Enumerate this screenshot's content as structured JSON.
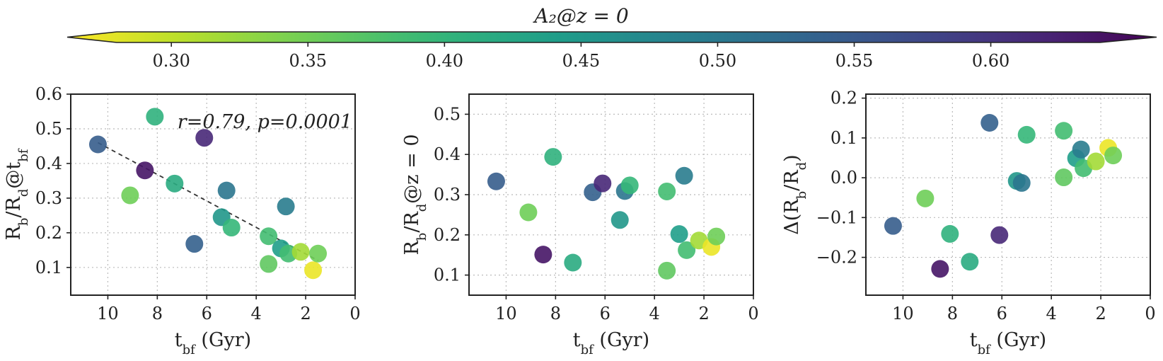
{
  "colorbar": {
    "title": "A₂@z = 0",
    "range": [
      0.28,
      0.64
    ],
    "ticks": [
      0.3,
      0.35,
      0.4,
      0.45,
      0.5,
      0.55,
      0.6
    ],
    "tick_labels": [
      "0.30",
      "0.35",
      "0.40",
      "0.45",
      "0.50",
      "0.55",
      "0.60"
    ],
    "colormap": "viridis_r",
    "extend": "both"
  },
  "chart_data": [
    {
      "type": "scatter",
      "id": "left",
      "xlabel": "t_bf (Gyr)",
      "ylabel": "R_b/R_d@t_bf",
      "xlim": [
        11.5,
        0
      ],
      "ylim": [
        0.02,
        0.6
      ],
      "xticks": [
        10,
        8,
        6,
        4,
        2,
        0
      ],
      "yticks": [
        0.1,
        0.2,
        0.3,
        0.4,
        0.5,
        0.6
      ],
      "xtick_labels": [
        "10",
        "8",
        "6",
        "4",
        "2",
        "0"
      ],
      "ytick_labels": [
        "0.1",
        "0.2",
        "0.3",
        "0.4",
        "0.5",
        "0.6"
      ],
      "annotation": "r=0.79, p=0.0001",
      "fit_line": {
        "x": [
          10.4,
          1.5
        ],
        "y": [
          0.46,
          0.12
        ]
      },
      "points": [
        {
          "x": 10.4,
          "y": 0.455,
          "c": 0.535
        },
        {
          "x": 9.1,
          "y": 0.308,
          "c": 0.36
        },
        {
          "x": 8.5,
          "y": 0.38,
          "c": 0.62
        },
        {
          "x": 8.1,
          "y": 0.535,
          "c": 0.41
        },
        {
          "x": 7.3,
          "y": 0.342,
          "c": 0.42
        },
        {
          "x": 6.5,
          "y": 0.168,
          "c": 0.53
        },
        {
          "x": 6.1,
          "y": 0.474,
          "c": 0.6
        },
        {
          "x": 5.4,
          "y": 0.245,
          "c": 0.45
        },
        {
          "x": 5.2,
          "y": 0.322,
          "c": 0.5
        },
        {
          "x": 5.0,
          "y": 0.215,
          "c": 0.4
        },
        {
          "x": 3.5,
          "y": 0.19,
          "c": 0.39
        },
        {
          "x": 3.5,
          "y": 0.11,
          "c": 0.37
        },
        {
          "x": 3.0,
          "y": 0.155,
          "c": 0.44
        },
        {
          "x": 2.8,
          "y": 0.276,
          "c": 0.49
        },
        {
          "x": 2.7,
          "y": 0.14,
          "c": 0.39
        },
        {
          "x": 2.2,
          "y": 0.145,
          "c": 0.33
        },
        {
          "x": 1.7,
          "y": 0.092,
          "c": 0.29
        },
        {
          "x": 1.5,
          "y": 0.14,
          "c": 0.36
        }
      ]
    },
    {
      "type": "scatter",
      "id": "middle",
      "xlabel": "t_bf (Gyr)",
      "ylabel": "R_b/R_d@z = 0",
      "xlim": [
        11.5,
        0
      ],
      "ylim": [
        0.05,
        0.55
      ],
      "xticks": [
        10,
        8,
        6,
        4,
        2,
        0
      ],
      "yticks": [
        0.1,
        0.2,
        0.3,
        0.4,
        0.5
      ],
      "xtick_labels": [
        "10",
        "8",
        "6",
        "4",
        "2",
        "0"
      ],
      "ytick_labels": [
        "0.1",
        "0.2",
        "0.3",
        "0.4",
        "0.5"
      ],
      "points": [
        {
          "x": 10.4,
          "y": 0.333,
          "c": 0.535
        },
        {
          "x": 9.1,
          "y": 0.256,
          "c": 0.36
        },
        {
          "x": 8.5,
          "y": 0.151,
          "c": 0.62
        },
        {
          "x": 8.1,
          "y": 0.394,
          "c": 0.41
        },
        {
          "x": 7.3,
          "y": 0.131,
          "c": 0.42
        },
        {
          "x": 6.5,
          "y": 0.306,
          "c": 0.53
        },
        {
          "x": 6.1,
          "y": 0.328,
          "c": 0.6
        },
        {
          "x": 5.4,
          "y": 0.237,
          "c": 0.45
        },
        {
          "x": 5.2,
          "y": 0.309,
          "c": 0.5
        },
        {
          "x": 5.0,
          "y": 0.323,
          "c": 0.4
        },
        {
          "x": 3.5,
          "y": 0.308,
          "c": 0.39
        },
        {
          "x": 3.5,
          "y": 0.111,
          "c": 0.37
        },
        {
          "x": 3.0,
          "y": 0.202,
          "c": 0.44
        },
        {
          "x": 2.8,
          "y": 0.347,
          "c": 0.49
        },
        {
          "x": 2.7,
          "y": 0.162,
          "c": 0.39
        },
        {
          "x": 2.2,
          "y": 0.186,
          "c": 0.33
        },
        {
          "x": 1.7,
          "y": 0.17,
          "c": 0.29
        },
        {
          "x": 1.5,
          "y": 0.196,
          "c": 0.36
        }
      ]
    },
    {
      "type": "scatter",
      "id": "right",
      "xlabel": "t_bf (Gyr)",
      "ylabel": "Δ(R_b/R_d)",
      "xlim": [
        11.5,
        0
      ],
      "ylim": [
        -0.295,
        0.21
      ],
      "xticks": [
        10,
        8,
        6,
        4,
        2,
        0
      ],
      "yticks": [
        -0.2,
        -0.1,
        0.0,
        0.1,
        0.2
      ],
      "xtick_labels": [
        "10",
        "8",
        "6",
        "4",
        "2",
        "0"
      ],
      "ytick_labels": [
        "−0.2",
        "−0.1",
        "0.0",
        "0.1",
        "0.2"
      ],
      "points": [
        {
          "x": 10.4,
          "y": -0.121,
          "c": 0.535
        },
        {
          "x": 9.1,
          "y": -0.052,
          "c": 0.36
        },
        {
          "x": 8.5,
          "y": -0.229,
          "c": 0.62
        },
        {
          "x": 8.1,
          "y": -0.141,
          "c": 0.41
        },
        {
          "x": 7.3,
          "y": -0.211,
          "c": 0.42
        },
        {
          "x": 6.5,
          "y": 0.138,
          "c": 0.53
        },
        {
          "x": 6.1,
          "y": -0.144,
          "c": 0.6
        },
        {
          "x": 5.4,
          "y": -0.008,
          "c": 0.45
        },
        {
          "x": 5.2,
          "y": -0.013,
          "c": 0.5
        },
        {
          "x": 5.0,
          "y": 0.108,
          "c": 0.4
        },
        {
          "x": 3.5,
          "y": 0.118,
          "c": 0.39
        },
        {
          "x": 3.5,
          "y": 0.001,
          "c": 0.37
        },
        {
          "x": 3.0,
          "y": 0.049,
          "c": 0.44
        },
        {
          "x": 2.8,
          "y": 0.071,
          "c": 0.49
        },
        {
          "x": 2.7,
          "y": 0.024,
          "c": 0.39
        },
        {
          "x": 2.2,
          "y": 0.041,
          "c": 0.33
        },
        {
          "x": 1.7,
          "y": 0.075,
          "c": 0.29
        },
        {
          "x": 1.5,
          "y": 0.056,
          "c": 0.36
        }
      ]
    }
  ]
}
